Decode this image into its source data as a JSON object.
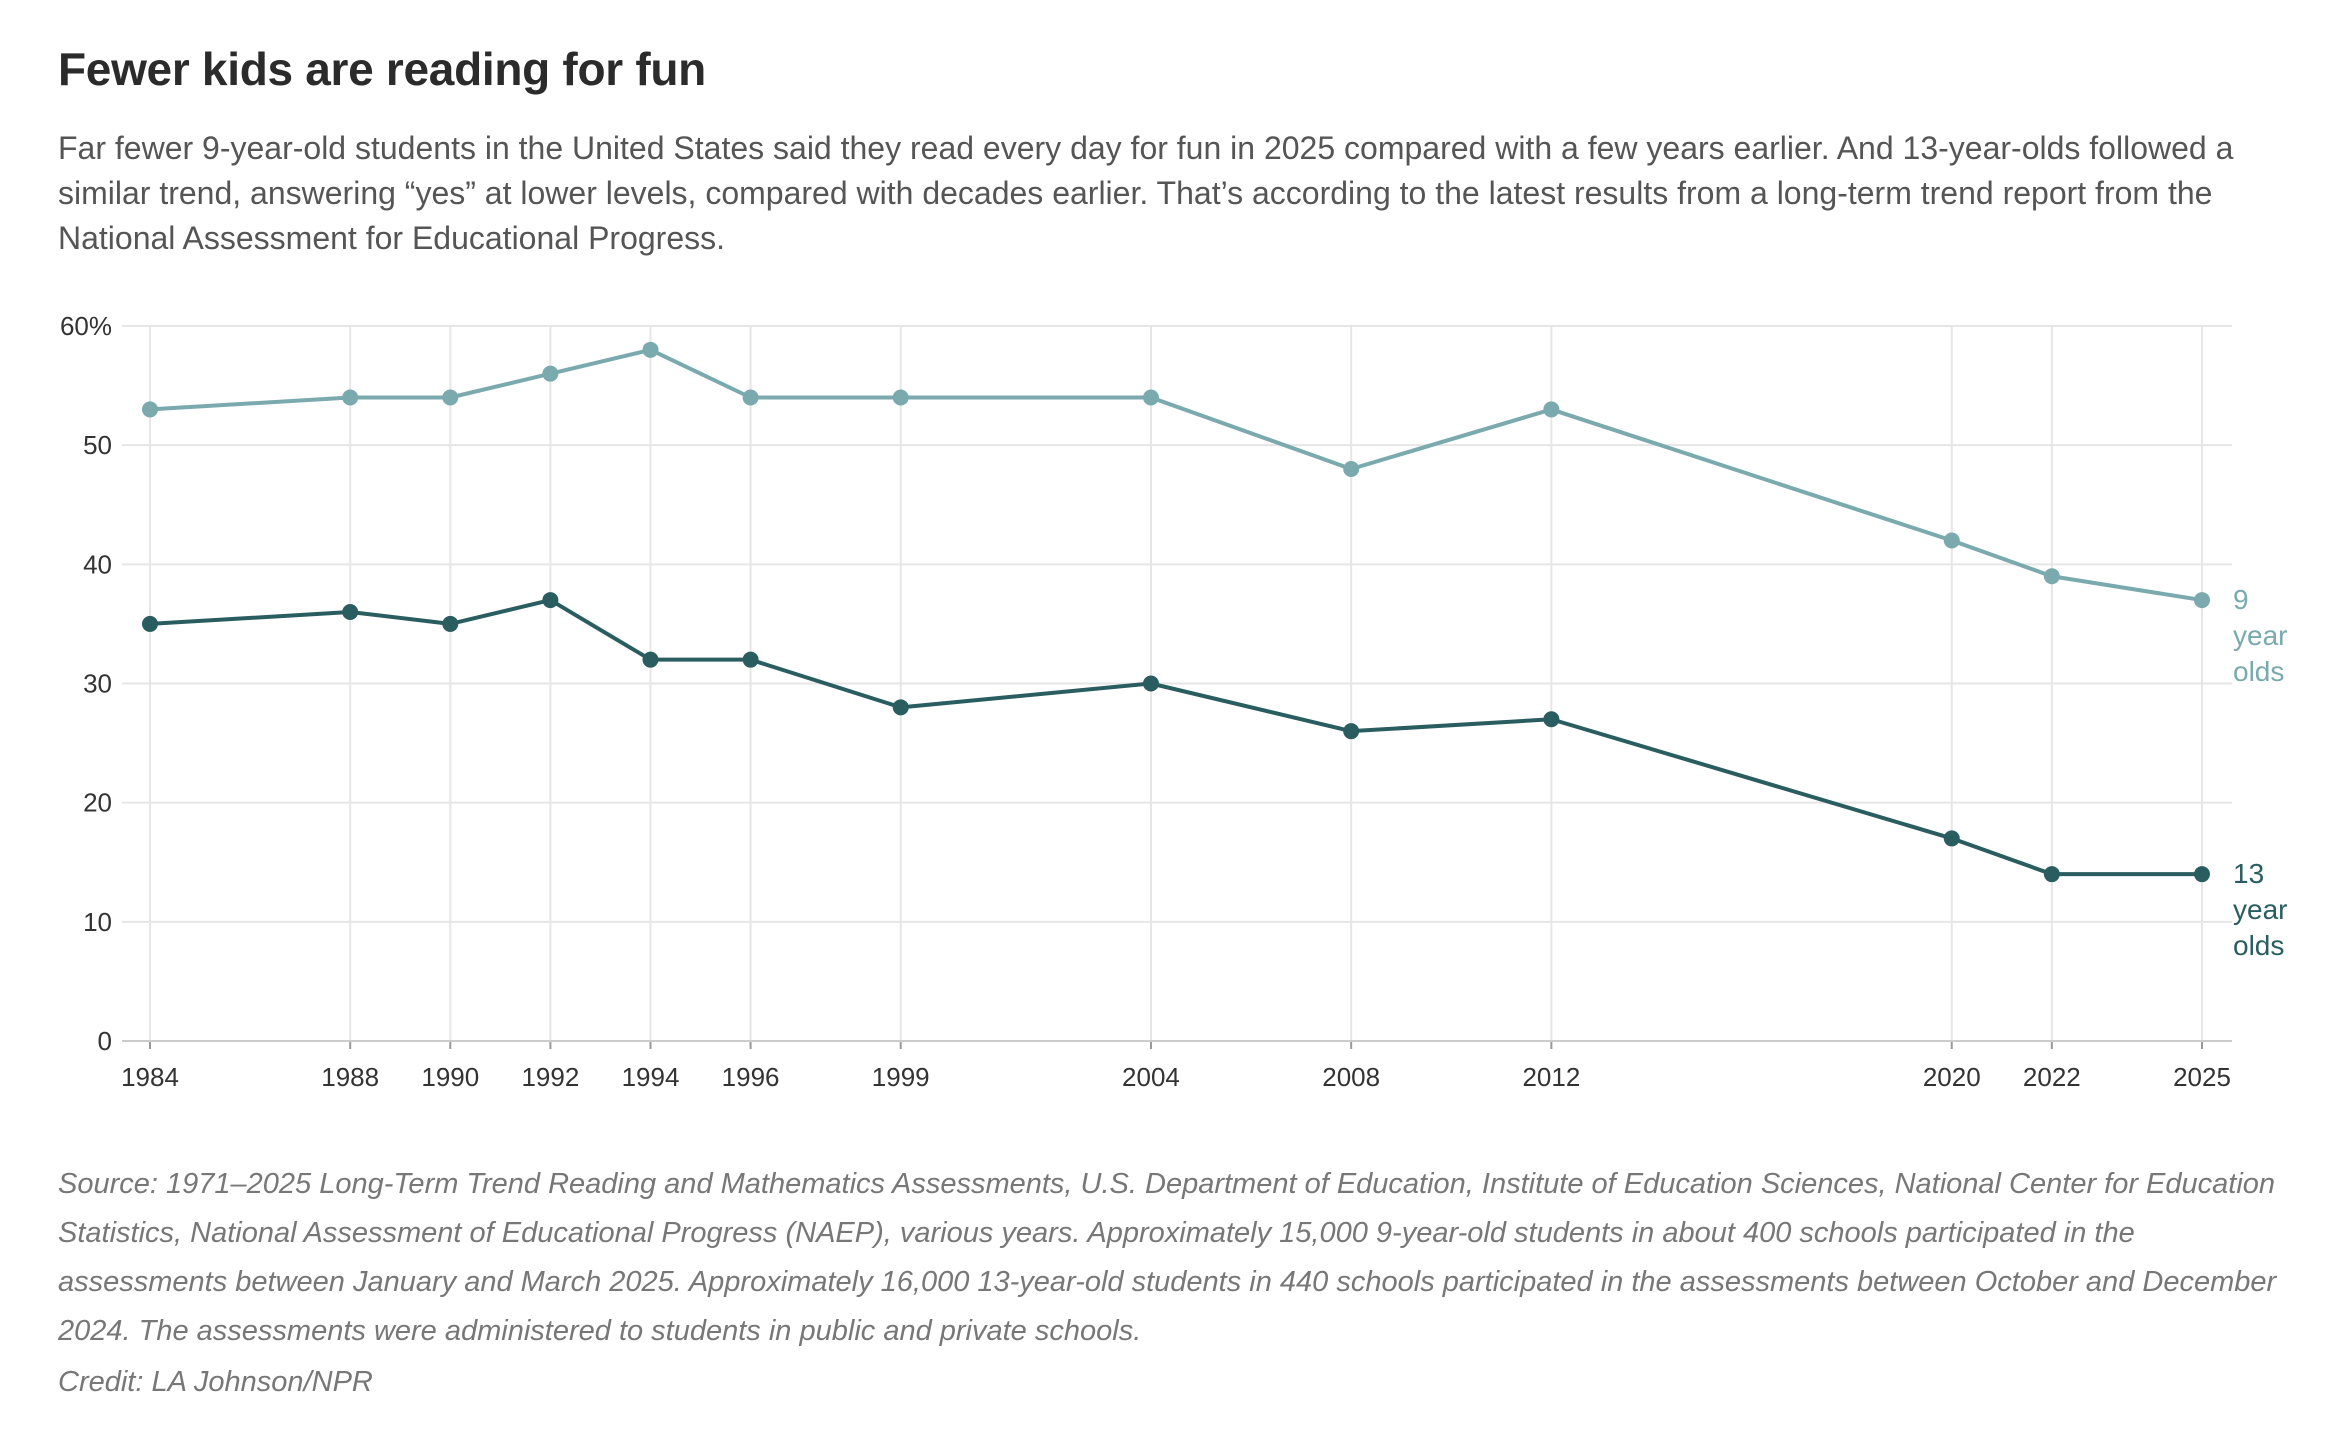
{
  "header": {
    "title": "Fewer kids are reading for fun",
    "subtitle": "Far fewer 9-year-old students in the United States said they read every day for fun in 2025 compared with a few years earlier. And 13-year-olds followed a similar trend, answering “yes” at lower levels, compared with decades earlier. That’s according to the latest results from a long-term trend report from the National Assessment for Educational Progress."
  },
  "footer": {
    "source": "Source: 1971–2025 Long-Term Trend Reading and Mathematics Assessments, U.S. Department of Education, Institute of Education Sciences, National Center for Education Statistics, National Assessment of Educational Progress (NAEP), various years. Approximately 15,000 9-year-old students in about 400 schools participated in the assessments between January and March 2025. Approximately 16,000 13-year-old students in 440 schools participated in the assessments between October and December 2024. The assessments were administered to students in public and private schools.",
    "credit": "Credit: LA Johnson/NPR"
  },
  "chart_data": {
    "type": "line",
    "title": "Fewer kids are reading for fun",
    "xlabel": "",
    "ylabel": "",
    "x": [
      1984,
      1988,
      1990,
      1992,
      1994,
      1996,
      1999,
      2004,
      2008,
      2012,
      2020,
      2022,
      2025
    ],
    "x_tick_labels": [
      "1984",
      "1988",
      "1990",
      "1992",
      "1994",
      "1996",
      "1999",
      "2004",
      "2008",
      "2012",
      "2020",
      "2022",
      "2025"
    ],
    "y_ticks": [
      0,
      10,
      20,
      30,
      40,
      50,
      60
    ],
    "y_tick_labels": [
      "0",
      "10",
      "20",
      "30",
      "40",
      "50",
      "60%"
    ],
    "ylim": [
      0,
      60
    ],
    "grid": true,
    "legend": "direct labels at line ends",
    "series": [
      {
        "name": "9 year olds",
        "label_lines": [
          "9",
          "year",
          "olds"
        ],
        "color": "#7aaaad",
        "values": [
          53,
          54,
          54,
          56,
          58,
          54,
          54,
          54,
          48,
          53,
          42,
          39,
          37
        ]
      },
      {
        "name": "13 year olds",
        "label_lines": [
          "13",
          "year",
          "olds"
        ],
        "color": "#2a5d5f",
        "values": [
          35,
          36,
          35,
          37,
          32,
          32,
          28,
          30,
          26,
          27,
          17,
          14,
          14
        ]
      }
    ],
    "grid_color": "#e6e6e6"
  }
}
